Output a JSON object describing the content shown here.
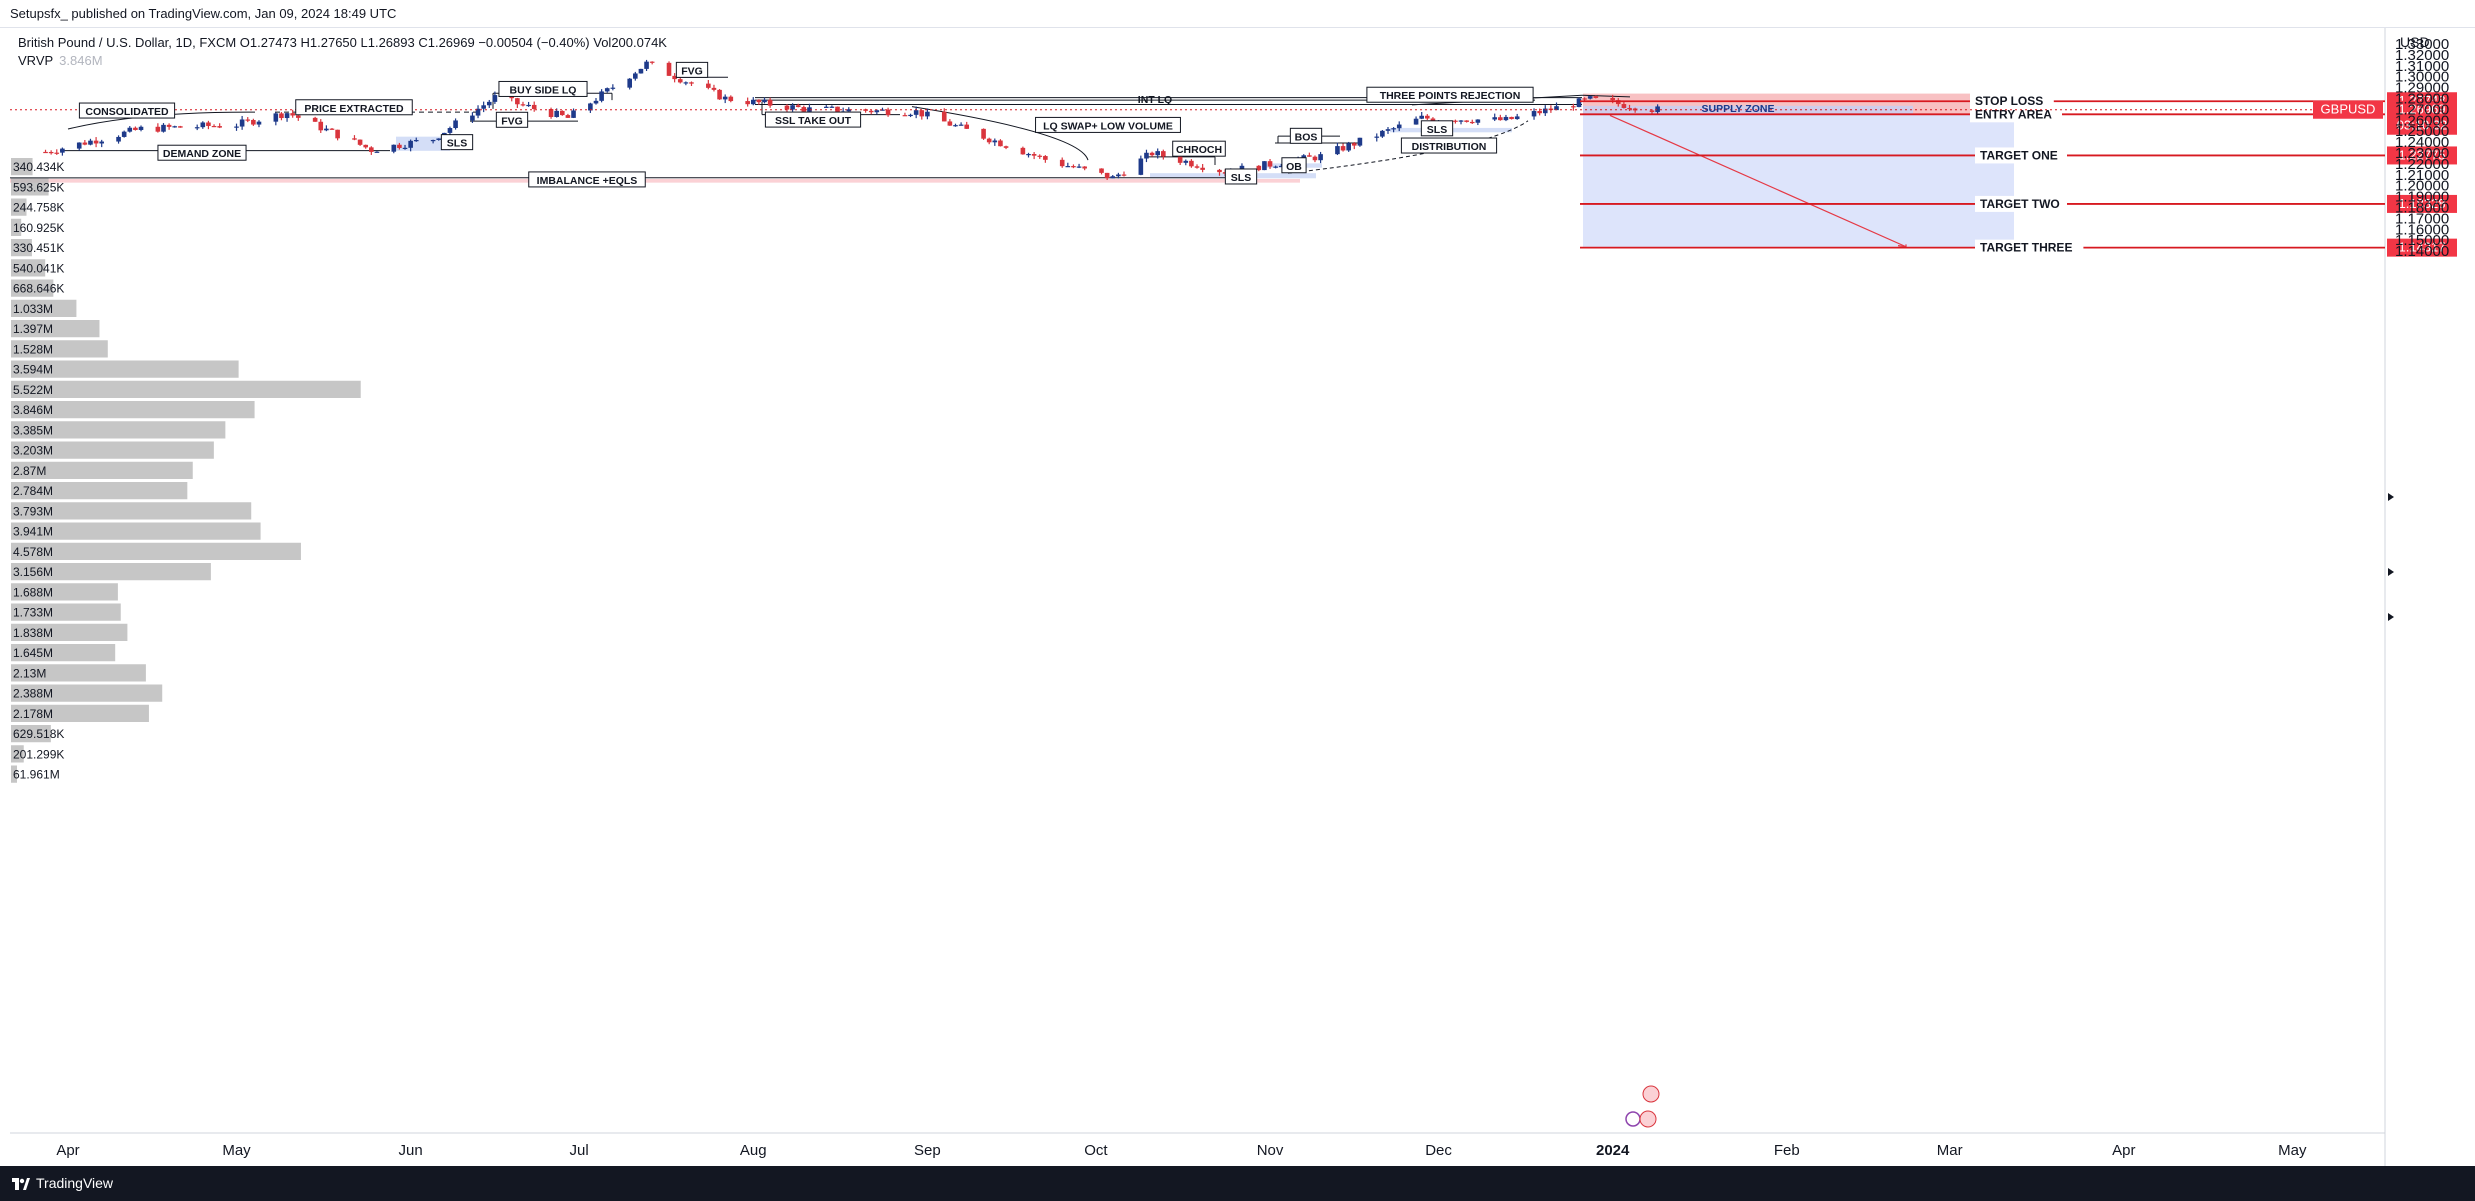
{
  "header": {
    "published": "Setupsfx_ published on TradingView.com, Jan 09, 2024 18:49 UTC"
  },
  "legend": {
    "symbol_line": "British Pound / U.S. Dollar, 1D, FXCM  O1.27473  H1.27650  L1.26893  C1.26969  −0.00504 (−0.40%)  Vol200.074K",
    "vrvp_label": "VRVP",
    "vrvp_value": "3.846M"
  },
  "footer": {
    "brand": "TradingView"
  },
  "axis": {
    "currency": "USD"
  },
  "colors": {
    "bull": "#1e3a8a",
    "bear": "#d9353d",
    "loss_zone": "#f7b6b9",
    "profit_zone": "#dbe3fb",
    "level_line": "#d71920",
    "label_bg": "#f23645",
    "volume_bar": "#b8b8b8"
  },
  "chart_data": {
    "type": "candlestick",
    "title": "British Pound / U.S. Dollar, 1D, FXCM",
    "ylim": [
      1.134,
      1.337
    ],
    "y_ticks": [
      "1.33000",
      "1.32000",
      "1.31000",
      "1.30000",
      "1.29000",
      "1.28000",
      "1.27000",
      "1.26000",
      "1.25000",
      "1.24000",
      "1.23000",
      "1.22000",
      "1.21000",
      "1.20000",
      "1.19000",
      "1.18000",
      "1.17000",
      "1.16000",
      "1.15000",
      "1.14000"
    ],
    "x_ticks": [
      "Apr",
      "May",
      "Jun",
      "Jul",
      "Aug",
      "Sep",
      "Oct",
      "Nov",
      "Dec",
      "2024",
      "Feb",
      "Mar",
      "Apr",
      "May"
    ],
    "x_tick_dates": [
      "2023-04-01",
      "2023-05-01",
      "2023-06-01",
      "2023-07-01",
      "2023-08-01",
      "2023-09-01",
      "2023-10-01",
      "2023-11-01",
      "2023-12-01",
      "2024-01-01",
      "2024-02-01",
      "2024-03-01",
      "2024-04-01",
      "2024-05-01"
    ],
    "price_path": [
      [
        "2023-03-28",
        1.231
      ],
      [
        "2023-04-14",
        1.252
      ],
      [
        "2023-05-01",
        1.256
      ],
      [
        "2023-05-10",
        1.267
      ],
      [
        "2023-05-25",
        1.233
      ],
      [
        "2023-06-05",
        1.243
      ],
      [
        "2023-06-16",
        1.281
      ],
      [
        "2023-06-29",
        1.262
      ],
      [
        "2023-07-13",
        1.312
      ],
      [
        "2023-07-27",
        1.28
      ],
      [
        "2023-08-11",
        1.27
      ],
      [
        "2023-08-30",
        1.268
      ],
      [
        "2023-09-22",
        1.224
      ],
      [
        "2023-10-04",
        1.207
      ],
      [
        "2023-10-11",
        1.23
      ],
      [
        "2023-10-24",
        1.213
      ],
      [
        "2023-11-10",
        1.227
      ],
      [
        "2023-11-28",
        1.262
      ],
      [
        "2023-12-13",
        1.26
      ],
      [
        "2023-12-28",
        1.279
      ],
      [
        "2024-01-09",
        1.2697
      ]
    ],
    "trade_levels": [
      {
        "name": "STOP LOSS",
        "value": 1.27748,
        "label": "1.27748"
      },
      {
        "name": "ENTRY AREA",
        "value": 1.2655,
        "label": "1.26550"
      },
      {
        "name": "TARGET ONE",
        "value": 1.22775,
        "label": "1.22775"
      },
      {
        "name": "TARGET TWO",
        "value": 1.18328,
        "label": "1.18328"
      },
      {
        "name": "TARGET THREE",
        "value": 1.14317,
        "label": "1.14317"
      }
    ],
    "current_price": {
      "symbol": "GBPUSD",
      "value": 1.26969,
      "label": "1.26969",
      "countdown": "03:10:32"
    },
    "volume_profile": [
      "340.434K",
      "593.625K",
      "244.758K",
      "160.925K",
      "330.451K",
      "540.041K",
      "668.646K",
      "1.033M",
      "1.397M",
      "1.528M",
      "3.594M",
      "5.522M",
      "3.846M",
      "3.385M",
      "3.203M",
      "2.87M",
      "2.784M",
      "3.793M",
      "3.941M",
      "4.578M",
      "3.156M",
      "1.688M",
      "1.733M",
      "1.838M",
      "1.645M",
      "2.13M",
      "2.388M",
      "2.178M",
      "629.518K",
      "201.299K",
      "61.961M"
    ],
    "annotations": [
      "BUY SIDE LQ",
      "FVG",
      "FVG",
      "PRICE EXTRACTED",
      "CONSOLIDATED",
      "SLS",
      "DEMAND ZONE",
      "IMBALANCE +EQLS",
      "INT LQ",
      "THREE POINTS REJECTION",
      "SSL TAKE OUT",
      "LQ SWAP+ LOW VOLUME",
      "CHROCH",
      "BOS",
      "OB",
      "SLS",
      "DISTRIBUTION",
      "SLS",
      "SUPPLY ZONE"
    ]
  }
}
